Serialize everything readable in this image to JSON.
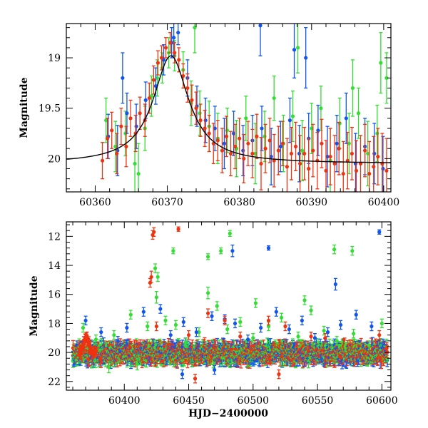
{
  "colors": {
    "blue": "#1155ee",
    "green": "#33dd33",
    "red": "#ee3311",
    "fit": "#000000"
  },
  "chart_data": [
    {
      "type": "scatter",
      "title": "",
      "xlabel": "",
      "ylabel": "Magnitude",
      "xlim": [
        60356,
        60401
      ],
      "ylim": [
        20.33,
        18.66
      ],
      "y_inverted": true,
      "xticks": [
        60360,
        60370,
        60380,
        60390,
        60400
      ],
      "yticks": [
        19,
        19.5,
        20
      ],
      "ytick_labels": [
        "19",
        "19.5",
        "20"
      ],
      "series": [
        {
          "color": "green",
          "x": [
            60361.5,
            60362.8,
            60364.2,
            60365.5,
            60366.9,
            60367.8,
            60368.6,
            60369.3,
            60370.2,
            60371.0,
            60372.2,
            60373.3,
            60374.5,
            60375.8,
            60377.0,
            60378.3,
            60379.6,
            60380.9,
            60382.2,
            60383.5,
            60384.8,
            60386.1,
            60387.4,
            60388.7,
            60390.0,
            60391.3,
            60392.6,
            60393.9,
            60395.2,
            60396.5,
            60397.8,
            60399.1,
            60400.4,
            60366.0,
            60373.8,
            60388.1,
            60395.7,
            60399.6
          ],
          "y": [
            19.62,
            19.88,
            19.75,
            20.05,
            19.7,
            19.38,
            19.2,
            19.1,
            18.95,
            18.98,
            19.12,
            19.45,
            19.55,
            19.68,
            19.8,
            19.72,
            19.9,
            19.6,
            19.95,
            19.78,
            19.4,
            19.85,
            19.58,
            19.92,
            19.7,
            19.5,
            20.02,
            19.65,
            19.85,
            19.55,
            19.95,
            19.75,
            19.2,
            20.15,
            18.7,
            18.9,
            19.3,
            19.05
          ],
          "err": [
            0.22,
            0.25,
            0.22,
            0.28,
            0.22,
            0.2,
            0.18,
            0.15,
            0.15,
            0.15,
            0.18,
            0.22,
            0.22,
            0.25,
            0.25,
            0.22,
            0.28,
            0.22,
            0.3,
            0.25,
            0.22,
            0.28,
            0.25,
            0.3,
            0.25,
            0.22,
            0.32,
            0.25,
            0.3,
            0.25,
            0.32,
            0.28,
            0.25,
            0.3,
            0.25,
            0.25,
            0.28,
            0.3
          ]
        },
        {
          "color": "blue",
          "x": [
            60361.8,
            60363.1,
            60364.4,
            60365.7,
            60367.0,
            60368.4,
            60369.5,
            60370.6,
            60371.5,
            60372.8,
            60374.1,
            60375.3,
            60376.6,
            60377.9,
            60379.2,
            60380.5,
            60381.8,
            60383.1,
            60384.4,
            60385.7,
            60387.0,
            60388.3,
            60389.6,
            60390.9,
            60392.2,
            60393.5,
            60394.8,
            60396.1,
            60397.4,
            60398.7,
            60399.9,
            60363.8,
            60370.9,
            60382.9,
            60387.6,
            60389.2
          ],
          "y": [
            19.78,
            19.92,
            19.55,
            19.68,
            19.42,
            19.28,
            19.02,
            18.85,
            18.75,
            19.2,
            19.48,
            19.62,
            19.7,
            19.85,
            19.75,
            19.92,
            19.82,
            19.7,
            19.98,
            19.88,
            19.62,
            19.95,
            19.8,
            19.72,
            19.98,
            19.85,
            19.6,
            20.05,
            19.88,
            19.95,
            20.1,
            19.2,
            18.8,
            18.68,
            18.92,
            19.0
          ],
          "err": [
            0.22,
            0.25,
            0.2,
            0.22,
            0.18,
            0.18,
            0.15,
            0.15,
            0.12,
            0.18,
            0.2,
            0.22,
            0.22,
            0.25,
            0.22,
            0.25,
            0.25,
            0.22,
            0.28,
            0.25,
            0.22,
            0.28,
            0.25,
            0.25,
            0.3,
            0.28,
            0.25,
            0.3,
            0.28,
            0.3,
            0.32,
            0.25,
            0.18,
            0.3,
            0.28,
            0.3
          ]
        },
        {
          "color": "red",
          "x": [
            60361.0,
            60361.7,
            60362.3,
            60363.0,
            60363.6,
            60364.3,
            60364.9,
            60365.6,
            60366.2,
            60366.9,
            60367.5,
            60368.1,
            60368.7,
            60369.2,
            60369.8,
            60370.4,
            60371.0,
            60371.6,
            60372.2,
            60372.8,
            60373.4,
            60374.0,
            60374.6,
            60375.2,
            60375.8,
            60376.4,
            60377.0,
            60377.6,
            60378.2,
            60378.8,
            60379.4,
            60380.0,
            60380.6,
            60381.2,
            60381.8,
            60382.4,
            60383.0,
            60383.6,
            60384.2,
            60384.8,
            60385.4,
            60386.0,
            60386.6,
            60387.2,
            60387.8,
            60388.4,
            60389.0,
            60389.6,
            60390.2,
            60390.8,
            60391.4,
            60392.0,
            60392.6,
            60393.2,
            60393.8,
            60394.4,
            60395.0,
            60395.6,
            60396.2,
            60396.8,
            60397.4,
            60398.0,
            60398.6,
            60399.2,
            60399.8,
            60400.4
          ],
          "y": [
            20.02,
            19.8,
            19.72,
            19.95,
            19.68,
            19.88,
            19.6,
            19.75,
            19.55,
            19.62,
            19.4,
            19.22,
            19.05,
            19.0,
            18.9,
            18.85,
            18.95,
            19.02,
            19.18,
            19.3,
            19.42,
            19.5,
            19.62,
            19.7,
            19.75,
            19.85,
            19.82,
            19.92,
            19.78,
            19.95,
            19.88,
            19.8,
            20.0,
            19.85,
            19.95,
            19.78,
            20.05,
            19.9,
            19.82,
            20.02,
            19.92,
            19.85,
            20.08,
            19.95,
            19.88,
            20.05,
            19.95,
            20.1,
            19.92,
            20.02,
            19.85,
            20.12,
            19.98,
            20.05,
            19.9,
            20.15,
            20.02,
            19.95,
            20.12,
            20.05,
            19.92,
            20.15,
            20.08,
            19.98,
            20.05,
            20.12
          ],
          "err": [
            0.18,
            0.2,
            0.18,
            0.2,
            0.18,
            0.2,
            0.18,
            0.18,
            0.16,
            0.16,
            0.15,
            0.14,
            0.12,
            0.12,
            0.1,
            0.1,
            0.1,
            0.12,
            0.12,
            0.14,
            0.15,
            0.16,
            0.16,
            0.18,
            0.18,
            0.2,
            0.2,
            0.22,
            0.2,
            0.22,
            0.22,
            0.2,
            0.24,
            0.22,
            0.24,
            0.22,
            0.26,
            0.24,
            0.22,
            0.26,
            0.24,
            0.22,
            0.28,
            0.26,
            0.24,
            0.28,
            0.26,
            0.3,
            0.26,
            0.28,
            0.24,
            0.3,
            0.28,
            0.28,
            0.26,
            0.32,
            0.28,
            0.26,
            0.3,
            0.28,
            0.26,
            0.32,
            0.3,
            0.28,
            0.3,
            0.32
          ]
        }
      ],
      "fit": {
        "color": "fit",
        "peak_x": 60370.5,
        "peak_mag": 18.98,
        "base_mag": 20.05,
        "width_days": 3.0
      }
    },
    {
      "type": "scatter",
      "title": "",
      "xlabel": "HJD−2400000",
      "ylabel": "Magnitude",
      "xlim": [
        60355,
        60607
      ],
      "ylim": [
        22.6,
        11.0
      ],
      "y_inverted": true,
      "xticks": [
        60400,
        60450,
        60500,
        60550,
        60600
      ],
      "yticks": [
        12,
        14,
        16,
        18,
        20,
        22
      ],
      "ytick_labels": [
        "12",
        "14",
        "16",
        "18",
        "20",
        "22"
      ],
      "series": [
        {
          "color": "green",
          "x": [
            60368,
            60378,
            60392,
            60405,
            60418,
            60425,
            60432,
            60440,
            60448,
            60458,
            60465,
            60472,
            60480,
            60490,
            60500,
            60512,
            60522,
            60535,
            60545,
            60555,
            60565,
            60578,
            60590,
            60600,
            60424,
            60426,
            60438,
            60465,
            60475,
            60482,
            60563,
            60577,
            60502,
            60540,
            60388,
            60410
          ],
          "y": [
            18.3,
            19.1,
            18.8,
            17.4,
            18.2,
            16.2,
            17.8,
            18.1,
            19.3,
            18.6,
            15.9,
            16.8,
            18.4,
            17.9,
            19.0,
            18.2,
            17.6,
            18.9,
            17.1,
            18.5,
            19.2,
            18.7,
            19.5,
            18.0,
            14.2,
            14.8,
            13.0,
            13.4,
            13.0,
            11.8,
            12.9,
            13.0,
            16.6,
            16.4,
            21.0,
            20.8
          ],
          "err": [
            0.3,
            0.3,
            0.3,
            0.3,
            0.3,
            0.4,
            0.3,
            0.3,
            0.3,
            0.3,
            0.4,
            0.3,
            0.3,
            0.3,
            0.3,
            0.3,
            0.3,
            0.3,
            0.3,
            0.3,
            0.3,
            0.3,
            0.3,
            0.3,
            0.3,
            0.3,
            0.2,
            0.2,
            0.2,
            0.2,
            0.3,
            0.3,
            0.3,
            0.3,
            0.4,
            0.4
          ]
        },
        {
          "color": "blue",
          "x": [
            60370,
            60382,
            60395,
            60402,
            60415,
            60428,
            60436,
            60446,
            60456,
            60468,
            60478,
            60486,
            60496,
            60506,
            60518,
            60528,
            60538,
            60548,
            60558,
            60568,
            60580,
            60592,
            60598,
            60484,
            60512,
            60564,
            60445,
            60470
          ],
          "y": [
            17.8,
            18.6,
            19.2,
            18.3,
            17.2,
            17.0,
            18.8,
            17.9,
            18.6,
            17.5,
            17.7,
            18.0,
            19.1,
            18.3,
            17.2,
            18.4,
            17.8,
            19.0,
            18.6,
            18.1,
            17.4,
            18.2,
            11.7,
            13.0,
            12.8,
            15.3,
            21.5,
            21.2
          ],
          "err": [
            0.3,
            0.3,
            0.3,
            0.3,
            0.3,
            0.3,
            0.3,
            0.3,
            0.3,
            0.3,
            0.3,
            0.3,
            0.3,
            0.3,
            0.3,
            0.3,
            0.3,
            0.3,
            0.3,
            0.3,
            0.3,
            0.3,
            0.15,
            0.4,
            0.15,
            0.4,
            0.3,
            0.3
          ]
        },
        {
          "color": "red",
          "x": [
            60421,
            60422,
            60423,
            60425,
            60442,
            60450,
            60465,
            60478,
            60490,
            60512,
            60525,
            60545,
            60556,
            60598,
            60420,
            60455,
            60520
          ],
          "y": [
            14.8,
            11.9,
            11.7,
            18.2,
            11.5,
            18.8,
            17.3,
            17.8,
            18.9,
            17.8,
            18.2,
            18.9,
            19.0,
            18.8,
            15.2,
            21.8,
            21.5
          ],
          "err": [
            0.4,
            0.3,
            0.3,
            0.3,
            0.15,
            0.3,
            0.3,
            0.3,
            0.3,
            0.3,
            0.3,
            0.3,
            0.3,
            0.3,
            0.3,
            0.3,
            0.3
          ]
        }
      ],
      "band": {
        "center_mag": 20.05,
        "spread": 0.55,
        "x_start": 60360,
        "x_end": 60604
      }
    }
  ]
}
